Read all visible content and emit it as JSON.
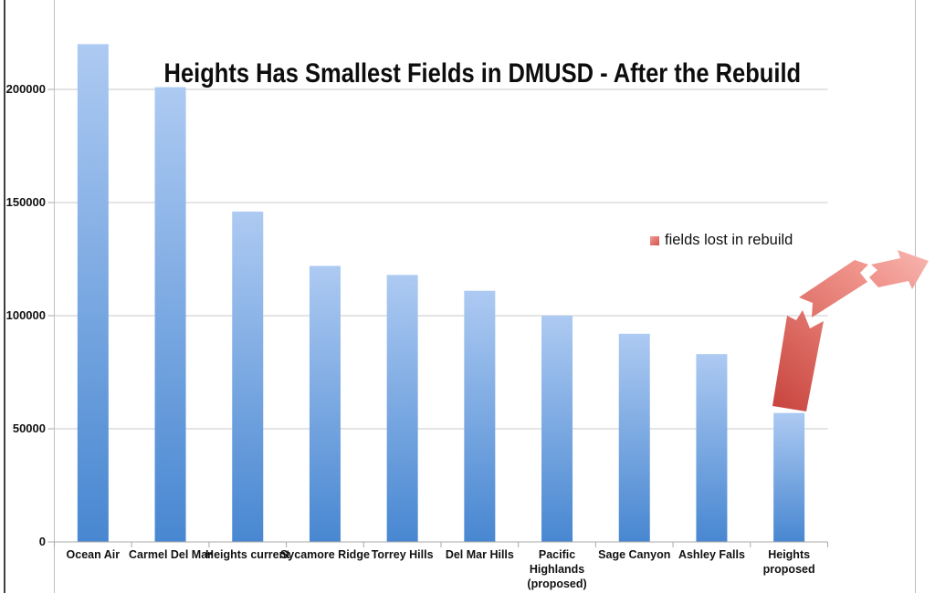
{
  "chart": {
    "title": "Heights Has Smallest Fields in DMUSD - After the Rebuild",
    "legend_label": "fields lost in rebuild"
  },
  "chart_data": {
    "type": "bar",
    "title": "Heights Has Smallest Fields in DMUSD - After the Rebuild",
    "categories": [
      "Ocean Air",
      "Carmel Del Mar",
      "Heights current",
      "Sycamore Ridge",
      "Torrey Hills",
      "Del Mar Hills",
      "Pacific\nHighlands\n(proposed)",
      "Sage Canyon",
      "Ashley Falls",
      "Heights\nproposed"
    ],
    "values": [
      220000,
      201000,
      146000,
      122000,
      118000,
      111000,
      100000,
      92000,
      83000,
      57000
    ],
    "xlabel": "",
    "ylabel": "",
    "yticks": [
      0,
      50000,
      100000,
      150000,
      200000
    ],
    "ytick_labels": [
      "0",
      "50000",
      "100000",
      "150000",
      "200000"
    ],
    "ylim": [
      0,
      240000
    ],
    "grid": true,
    "legend": [
      {
        "label": "fields lost in rebuild",
        "color": "#d9564e"
      }
    ],
    "legend_position": "right",
    "annotation": {
      "type": "broken-arrow",
      "meaning": "fields lost in rebuild",
      "from_category": "Heights\nproposed",
      "direction": "up-right"
    }
  },
  "colors": {
    "bar_top": "#adcaf2",
    "bar_bottom": "#4887d1",
    "arrow_stops": [
      "#c8463f",
      "#e0736b",
      "#f0958d",
      "#f7b6b0"
    ],
    "gridline": "#cacaca",
    "axis": "#a9a9a9",
    "legend_swatch_top": "#f09a93",
    "legend_swatch_bottom": "#d5544c"
  }
}
